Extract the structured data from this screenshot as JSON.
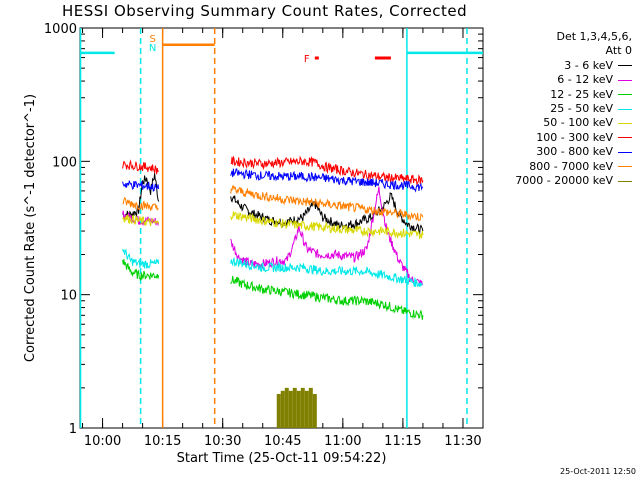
{
  "title": "HESSI Observing Summary Count Rates, Corrected",
  "footer_stamp": "25-Oct-2011 12:50",
  "legend": {
    "header_line1": "Det 1,3,4,5,6,",
    "header_line2": "Att 0"
  },
  "chart_data": {
    "type": "line",
    "title": "HESSI Observing Summary Count Rates, Corrected",
    "xlabel": "Start Time (25-Oct-11 09:54:22)",
    "ylabel": "Corrected Count Rate (s^-1 detector^-1)",
    "y_scale": "log",
    "ylim": [
      1,
      1000
    ],
    "xlim_minutes_after": [
      "09:54:22",
      "11:35:00"
    ],
    "x_ticks": [
      "10:00",
      "10:15",
      "10:30",
      "10:45",
      "11:00",
      "11:15",
      "11:30"
    ],
    "y_ticks": [
      "1",
      "10",
      "100",
      "1000"
    ],
    "legend_position": "right",
    "grid": false,
    "series": [
      {
        "name": "3 - 6 keV",
        "color": "#000000",
        "segments": [
          [
            [
              "10:05",
              40
            ],
            [
              "10:07",
              40
            ],
            [
              "10:09",
              43
            ],
            [
              "10:10",
              70
            ],
            [
              "10:11",
              75
            ],
            [
              "10:12",
              60
            ],
            [
              "10:13",
              80
            ],
            [
              "10:14",
              50
            ]
          ],
          [
            [
              "10:32",
              55
            ],
            [
              "10:35",
              45
            ],
            [
              "10:38",
              40
            ],
            [
              "10:42",
              36
            ],
            [
              "10:46",
              35
            ],
            [
              "10:50",
              38
            ],
            [
              "10:53",
              48
            ],
            [
              "10:55",
              38
            ],
            [
              "10:59",
              33
            ],
            [
              "11:03",
              34
            ],
            [
              "11:07",
              38
            ],
            [
              "11:10",
              45
            ],
            [
              "11:12",
              55
            ],
            [
              "11:14",
              40
            ],
            [
              "11:16",
              34
            ],
            [
              "11:18",
              32
            ],
            [
              "11:20",
              30
            ]
          ]
        ]
      },
      {
        "name": "6 - 12 keV",
        "color": "#e000e0",
        "segments": [
          [
            [
              "10:05",
              40
            ],
            [
              "10:07",
              38
            ],
            [
              "10:09",
              36
            ],
            [
              "10:12",
              36
            ],
            [
              "10:14",
              35
            ]
          ],
          [
            [
              "10:32",
              25
            ],
            [
              "10:34",
              19
            ],
            [
              "10:37",
              17
            ],
            [
              "10:40",
              17
            ],
            [
              "10:44",
              18
            ],
            [
              "10:46",
              18
            ],
            [
              "10:48",
              25
            ],
            [
              "10:49",
              32
            ],
            [
              "10:51",
              22
            ],
            [
              "10:54",
              20
            ],
            [
              "10:58",
              20
            ],
            [
              "11:03",
              19
            ],
            [
              "11:06",
              22
            ],
            [
              "11:08",
              45
            ],
            [
              "11:09",
              62
            ],
            [
              "11:11",
              30
            ],
            [
              "11:14",
              18
            ],
            [
              "11:17",
              13
            ],
            [
              "11:20",
              12
            ]
          ]
        ]
      },
      {
        "name": "12 - 25 keV",
        "color": "#00d000",
        "segments": [
          [
            [
              "10:05",
              18
            ],
            [
              "10:07",
              15
            ],
            [
              "10:09",
              14
            ],
            [
              "10:12",
              14
            ],
            [
              "10:14",
              14
            ]
          ],
          [
            [
              "10:32",
              13
            ],
            [
              "10:35",
              12
            ],
            [
              "10:40",
              11
            ],
            [
              "10:45",
              10.5
            ],
            [
              "10:50",
              10
            ],
            [
              "10:55",
              9.5
            ],
            [
              "11:00",
              9
            ],
            [
              "11:05",
              9
            ],
            [
              "11:10",
              8.5
            ],
            [
              "11:15",
              7.5
            ],
            [
              "11:20",
              7
            ]
          ]
        ]
      },
      {
        "name": "25 - 50 keV",
        "color": "#00e8e8",
        "segments": [
          [
            [
              "09:54:30",
              650
            ],
            [
              "10:03",
              650
            ]
          ],
          [
            [
              "10:05",
              22
            ],
            [
              "10:07",
              18
            ],
            [
              "10:09",
              17
            ],
            [
              "10:12",
              17
            ],
            [
              "10:14",
              17
            ]
          ],
          [
            [
              "10:32",
              18
            ],
            [
              "10:36",
              17
            ],
            [
              "10:40",
              16
            ],
            [
              "10:45",
              16
            ],
            [
              "10:50",
              16
            ],
            [
              "10:55",
              15
            ],
            [
              "11:00",
              15
            ],
            [
              "11:05",
              15
            ],
            [
              "11:10",
              14
            ],
            [
              "11:15",
              13
            ],
            [
              "11:20",
              12
            ]
          ],
          [
            [
              "11:16",
              650
            ],
            [
              "11:35",
              650
            ]
          ]
        ]
      },
      {
        "name": "50 - 100 keV",
        "color": "#d8d800",
        "segments": [
          [
            [
              "10:05",
              38
            ],
            [
              "10:09",
              36
            ],
            [
              "10:14",
              34
            ]
          ],
          [
            [
              "10:32",
              40
            ],
            [
              "10:36",
              38
            ],
            [
              "10:40",
              36
            ],
            [
              "10:45",
              34
            ],
            [
              "10:50",
              33
            ],
            [
              "10:55",
              32
            ],
            [
              "11:00",
              31
            ],
            [
              "11:05",
              30
            ],
            [
              "11:10",
              30
            ],
            [
              "11:15",
              29
            ],
            [
              "11:20",
              28
            ]
          ]
        ]
      },
      {
        "name": "100 - 300 keV",
        "color": "#ff0000",
        "segments": [
          [
            [
              "10:05",
              95
            ],
            [
              "10:09",
              92
            ],
            [
              "10:12",
              90
            ],
            [
              "10:14",
              85
            ]
          ],
          [
            [
              "10:32",
              100
            ],
            [
              "10:36",
              98
            ],
            [
              "10:40",
              96
            ],
            [
              "10:45",
              98
            ],
            [
              "10:50",
              100
            ],
            [
              "10:53",
              98
            ],
            [
              "10:56",
              90
            ],
            [
              "11:00",
              85
            ],
            [
              "11:05",
              80
            ],
            [
              "11:10",
              76
            ],
            [
              "11:15",
              74
            ],
            [
              "11:20",
              72
            ]
          ]
        ]
      },
      {
        "name": "300 - 800 keV",
        "color": "#0000ff",
        "segments": [
          [
            [
              "10:05",
              68
            ],
            [
              "10:09",
              66
            ],
            [
              "10:12",
              65
            ],
            [
              "10:14",
              62
            ]
          ],
          [
            [
              "10:32",
              82
            ],
            [
              "10:36",
              80
            ],
            [
              "10:40",
              78
            ],
            [
              "10:45",
              77
            ],
            [
              "10:50",
              77
            ],
            [
              "10:55",
              75
            ],
            [
              "11:00",
              72
            ],
            [
              "11:05",
              70
            ],
            [
              "11:10",
              68
            ],
            [
              "11:15",
              66
            ],
            [
              "11:20",
              64
            ]
          ]
        ]
      },
      {
        "name": "800 - 7000 keV",
        "color": "#ff8000",
        "segments": [
          [
            [
              "10:05",
              50
            ],
            [
              "10:09",
              47
            ],
            [
              "10:12",
              46
            ],
            [
              "10:14",
              44
            ]
          ],
          [
            [
              "10:32",
              62
            ],
            [
              "10:36",
              58
            ],
            [
              "10:40",
              55
            ],
            [
              "10:45",
              52
            ],
            [
              "10:50",
              50
            ],
            [
              "10:55",
              48
            ],
            [
              "11:00",
              46
            ],
            [
              "11:05",
              44
            ],
            [
              "11:10",
              42
            ],
            [
              "11:15",
              40
            ],
            [
              "11:20",
              38
            ]
          ],
          [
            [
              "10:15",
              750
            ],
            [
              "10:28",
              750
            ]
          ]
        ]
      },
      {
        "name": "7000 - 20000 keV",
        "color": "#808000",
        "spikes": [
          [
            "10:44",
            1.8
          ],
          [
            "10:45",
            1.9
          ],
          [
            "10:46",
            2.0
          ],
          [
            "10:47",
            1.9
          ],
          [
            "10:48",
            2.0
          ],
          [
            "10:49",
            1.9
          ],
          [
            "10:50",
            2.0
          ],
          [
            "10:51",
            1.9
          ],
          [
            "10:52",
            2.0
          ],
          [
            "10:53",
            1.8
          ]
        ]
      }
    ],
    "annotations": [
      {
        "text": "S",
        "color": "#ff8000",
        "time": "10:12:30",
        "at": "top"
      },
      {
        "text": "N",
        "color": "#00e8e8",
        "time": "10:12:30",
        "at": "top-2"
      },
      {
        "text": "F",
        "color": "#ff0000",
        "time": "10:51:00",
        "at": "flag"
      }
    ],
    "flare_bars": [
      {
        "start": "10:53",
        "end": "10:54"
      },
      {
        "start": "11:08",
        "end": "11:12"
      }
    ],
    "vlines": [
      {
        "time": "09:54:30",
        "color": "#00e8e8",
        "style": "solid"
      },
      {
        "time": "10:09:30",
        "color": "#00e8e8",
        "style": "dashed"
      },
      {
        "time": "10:15",
        "color": "#ff8000",
        "style": "solid"
      },
      {
        "time": "10:28",
        "color": "#ff8000",
        "style": "dashed"
      },
      {
        "time": "11:16",
        "color": "#00e8e8",
        "style": "solid"
      },
      {
        "time": "11:31",
        "color": "#00e8e8",
        "style": "dashed"
      }
    ]
  }
}
